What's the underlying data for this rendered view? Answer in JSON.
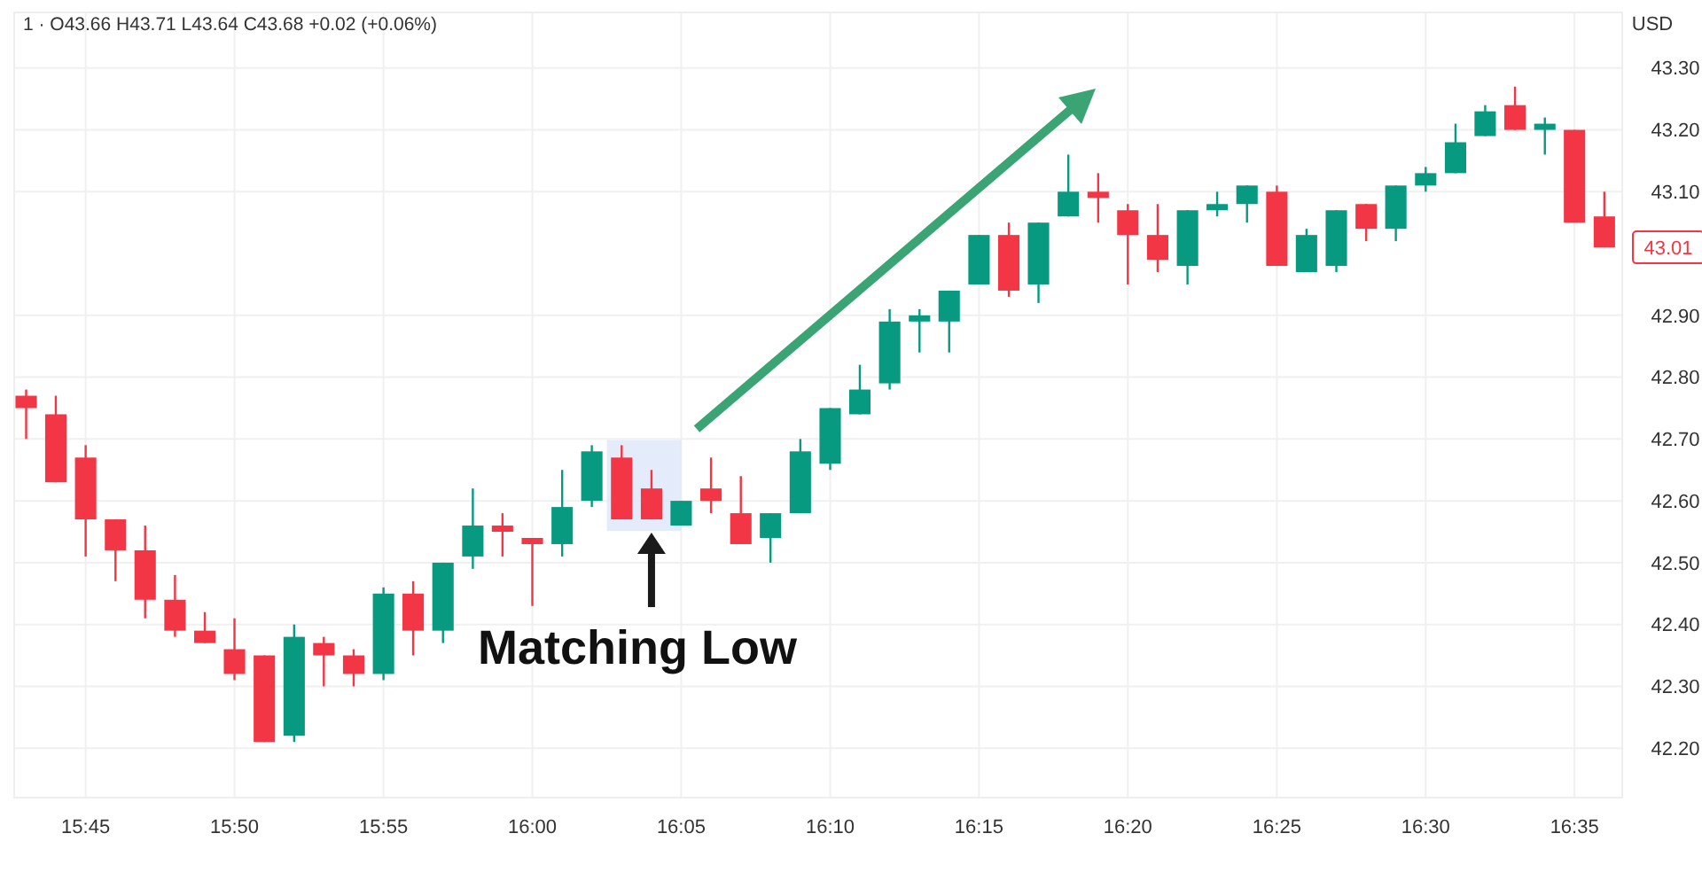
{
  "chart_data": {
    "type": "candlestick",
    "title": "1 · O43.66 H43.71 L43.64 C43.68 +0.02 (+0.06%)",
    "ylabel": "USD",
    "x": [
      15.7167,
      15.7333,
      15.75,
      15.7667,
      15.7833,
      15.8,
      15.8167,
      15.8333,
      15.85,
      15.8667,
      15.8833,
      15.9,
      15.9167,
      15.9333,
      15.95,
      15.9667,
      15.9833,
      16,
      16.0167,
      16.0333,
      16.05,
      16.0667,
      16.0833,
      16.1,
      16.1167,
      16.1333,
      16.15,
      16.1667,
      16.1833,
      16.2,
      16.2167,
      16.2333,
      16.25,
      16.2667,
      16.2833,
      16.3,
      16.3167,
      16.3333,
      16.35,
      16.3667,
      16.3833,
      16.4,
      16.4167,
      16.4333,
      16.45,
      16.4667,
      16.4833,
      16.5,
      16.5167,
      16.5333,
      16.55,
      16.5667,
      16.5833,
      16.6
    ],
    "ohlc": [
      [
        42.77,
        42.78,
        42.7,
        42.75
      ],
      [
        42.74,
        42.77,
        42.63,
        42.63
      ],
      [
        42.67,
        42.69,
        42.51,
        42.57
      ],
      [
        42.57,
        42.57,
        42.47,
        42.52
      ],
      [
        42.52,
        42.56,
        42.41,
        42.44
      ],
      [
        42.44,
        42.48,
        42.38,
        42.39
      ],
      [
        42.39,
        42.42,
        42.37,
        42.37
      ],
      [
        42.36,
        42.41,
        42.31,
        42.32
      ],
      [
        42.35,
        42.35,
        42.21,
        42.21
      ],
      [
        42.22,
        42.4,
        42.21,
        42.38
      ],
      [
        42.37,
        42.38,
        42.3,
        42.35
      ],
      [
        42.35,
        42.36,
        42.3,
        42.32
      ],
      [
        42.32,
        42.46,
        42.31,
        42.45
      ],
      [
        42.45,
        42.47,
        42.35,
        42.39
      ],
      [
        42.39,
        42.5,
        42.37,
        42.5
      ],
      [
        42.51,
        42.62,
        42.49,
        42.56
      ],
      [
        42.56,
        42.58,
        42.51,
        42.55
      ],
      [
        42.54,
        42.54,
        42.43,
        42.53
      ],
      [
        42.53,
        42.65,
        42.51,
        42.59
      ],
      [
        42.6,
        42.69,
        42.59,
        42.68
      ],
      [
        42.67,
        42.69,
        42.57,
        42.57
      ],
      [
        42.62,
        42.65,
        42.57,
        42.57
      ],
      [
        42.56,
        42.6,
        42.56,
        42.6
      ],
      [
        42.62,
        42.67,
        42.58,
        42.6
      ],
      [
        42.58,
        42.64,
        42.53,
        42.53
      ],
      [
        42.54,
        42.58,
        42.5,
        42.58
      ],
      [
        42.58,
        42.7,
        42.58,
        42.68
      ],
      [
        42.66,
        42.75,
        42.65,
        42.75
      ],
      [
        42.74,
        42.82,
        42.74,
        42.78
      ],
      [
        42.79,
        42.91,
        42.78,
        42.89
      ],
      [
        42.89,
        42.91,
        42.84,
        42.9
      ],
      [
        42.89,
        42.94,
        42.84,
        42.94
      ],
      [
        42.95,
        43.03,
        42.95,
        43.03
      ],
      [
        43.03,
        43.05,
        42.93,
        42.94
      ],
      [
        42.95,
        43.05,
        42.92,
        43.05
      ],
      [
        43.06,
        43.16,
        43.06,
        43.1
      ],
      [
        43.1,
        43.13,
        43.05,
        43.09
      ],
      [
        43.07,
        43.08,
        42.95,
        43.03
      ],
      [
        43.03,
        43.08,
        42.97,
        42.99
      ],
      [
        42.98,
        43.07,
        42.95,
        43.07
      ],
      [
        43.07,
        43.1,
        43.06,
        43.08
      ],
      [
        43.08,
        43.11,
        43.05,
        43.11
      ],
      [
        43.1,
        43.11,
        42.98,
        42.98
      ],
      [
        42.97,
        43.04,
        42.97,
        43.03
      ],
      [
        42.98,
        43.07,
        42.97,
        43.07
      ],
      [
        43.08,
        43.08,
        43.02,
        43.04
      ],
      [
        43.04,
        43.11,
        43.02,
        43.11
      ],
      [
        43.11,
        43.14,
        43.1,
        43.13
      ],
      [
        43.13,
        43.21,
        43.13,
        43.18
      ],
      [
        43.19,
        43.24,
        43.19,
        43.23
      ],
      [
        43.24,
        43.27,
        43.2,
        43.2
      ],
      [
        43.2,
        43.22,
        43.16,
        43.21
      ],
      [
        43.2,
        43.2,
        43.05,
        43.05
      ],
      [
        43.06,
        43.1,
        43.01,
        43.01
      ]
    ],
    "colors": [
      "#f23645",
      "#f23645",
      "#f23645",
      "#f23645",
      "#f23645",
      "#f23645",
      "#f23645",
      "#f23645",
      "#f23645",
      "#089981",
      "#f23645",
      "#f23645",
      "#089981",
      "#f23645",
      "#089981",
      "#089981",
      "#f23645",
      "#f23645",
      "#089981",
      "#089981",
      "#f23645",
      "#f23645",
      "#089981",
      "#f23645",
      "#f23645",
      "#089981",
      "#089981",
      "#089981",
      "#089981",
      "#089981",
      "#089981",
      "#089981",
      "#089981",
      "#f23645",
      "#089981",
      "#089981",
      "#f23645",
      "#f23645",
      "#f23645",
      "#089981",
      "#089981",
      "#089981",
      "#f23645",
      "#089981",
      "#089981",
      "#f23645",
      "#089981",
      "#089981",
      "#089981",
      "#089981",
      "#f23645",
      "#089981",
      "#f23645",
      "#f23645"
    ],
    "xlim": [
      15.71,
      16.61
    ],
    "xticks": [
      {
        "value": 15.75,
        "label": "15:45"
      },
      {
        "value": 15.8333,
        "label": "15:50"
      },
      {
        "value": 15.9167,
        "label": "15:55"
      },
      {
        "value": 16,
        "label": "16:00"
      },
      {
        "value": 16.0833,
        "label": "16:05"
      },
      {
        "value": 16.1667,
        "label": "16:10"
      },
      {
        "value": 16.25,
        "label": "16:15"
      },
      {
        "value": 16.3333,
        "label": "16:20"
      },
      {
        "value": 16.4167,
        "label": "16:25"
      },
      {
        "value": 16.5,
        "label": "16:30"
      },
      {
        "value": 16.5833,
        "label": "16:35"
      }
    ],
    "ylim": [
      42.12,
      43.39
    ],
    "yticks": [
      {
        "value": 42.2,
        "label": "42.20"
      },
      {
        "value": 42.3,
        "label": "42.30"
      },
      {
        "value": 42.4,
        "label": "42.40"
      },
      {
        "value": 42.5,
        "label": "42.50"
      },
      {
        "value": 42.6,
        "label": "42.60"
      },
      {
        "value": 42.7,
        "label": "42.70"
      },
      {
        "value": 42.8,
        "label": "42.80"
      },
      {
        "value": 42.9,
        "label": "42.90"
      },
      {
        "value": 43.1,
        "label": "43.10"
      },
      {
        "value": 43.2,
        "label": "43.20"
      },
      {
        "value": 43.3,
        "label": "43.30"
      }
    ],
    "grid": true,
    "bands": [
      {
        "axis": "x",
        "from": 16.0417,
        "to": 16.0833,
        "color": "#dde7fb"
      }
    ],
    "annotations": [
      {
        "text": "Matching Low",
        "x": 16.0667,
        "y": 42.56
      },
      "43.01"
    ]
  }
}
